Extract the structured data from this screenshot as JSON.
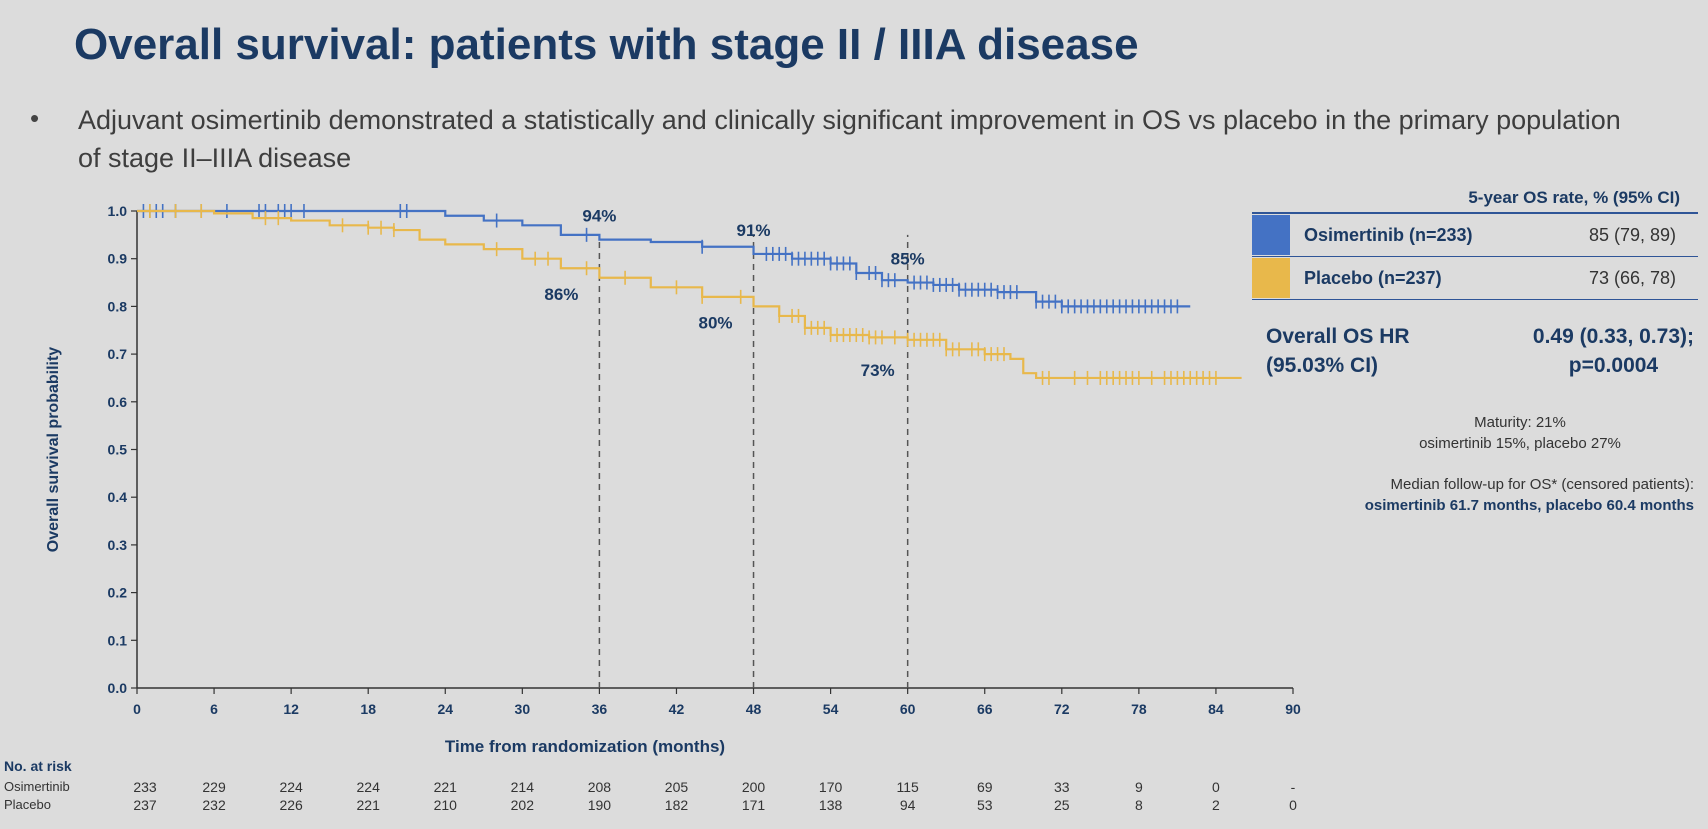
{
  "page": {
    "title": "Overall survival: patients with stage II / IIIA disease",
    "bullet_text": "Adjuvant osimertinib demonstrated a statistically and clinically significant improvement in OS vs placebo in the primary population of stage II–IIIA disease"
  },
  "chart_data": {
    "type": "line",
    "xlabel": "Time from randomization (months)",
    "ylabel": "Overall survival probability",
    "xlim": [
      0,
      90
    ],
    "ylim": [
      0,
      1.0
    ],
    "x_ticks": [
      0,
      6,
      12,
      18,
      24,
      30,
      36,
      42,
      48,
      54,
      60,
      66,
      72,
      78,
      84,
      90
    ],
    "y_ticks": [
      0.0,
      0.1,
      0.2,
      0.3,
      0.4,
      0.5,
      0.6,
      0.7,
      0.8,
      0.9,
      1.0
    ],
    "y_tick_labels": [
      "0.0",
      "0.1",
      "0.2",
      "0.3",
      "0.4",
      "0.5",
      "0.6",
      "0.7",
      "0.8",
      "0.9",
      "1.0"
    ],
    "reference_lines_x": [
      36,
      48,
      60
    ],
    "series": [
      {
        "name": "Osimertinib",
        "color": "#4472c4",
        "points": [
          [
            0,
            1.0
          ],
          [
            6,
            1.0
          ],
          [
            12,
            1.0
          ],
          [
            18,
            1.0
          ],
          [
            21,
            1.0
          ],
          [
            24,
            0.99
          ],
          [
            27,
            0.98
          ],
          [
            30,
            0.97
          ],
          [
            33,
            0.95
          ],
          [
            36,
            0.94
          ],
          [
            40,
            0.935
          ],
          [
            44,
            0.925
          ],
          [
            48,
            0.91
          ],
          [
            51,
            0.9
          ],
          [
            54,
            0.89
          ],
          [
            56,
            0.87
          ],
          [
            58,
            0.855
          ],
          [
            60,
            0.85
          ],
          [
            62,
            0.845
          ],
          [
            64,
            0.835
          ],
          [
            67,
            0.83
          ],
          [
            70,
            0.81
          ],
          [
            72,
            0.8
          ],
          [
            78,
            0.8
          ],
          [
            82,
            0.8
          ]
        ],
        "censors": [
          0.5,
          1,
          1.5,
          2,
          3,
          5,
          7,
          9.5,
          10,
          11,
          11.5,
          12,
          13,
          20.5,
          21,
          28,
          35,
          44,
          49,
          49.5,
          50,
          50.5,
          51,
          51.5,
          52,
          52.5,
          53,
          53.5,
          54,
          54.5,
          55,
          55.5,
          56,
          57,
          57.5,
          58,
          58.5,
          59,
          60.5,
          61,
          61.5,
          62,
          62.5,
          63,
          63.5,
          64,
          64.5,
          65,
          65.5,
          66,
          66.5,
          67,
          67.5,
          68,
          68.5,
          70,
          70.5,
          71,
          71.5,
          72,
          72.5,
          73,
          73.5,
          74,
          74.5,
          75,
          75.5,
          76,
          76.5,
          77,
          77.5,
          78,
          78.5,
          79,
          79.5,
          80,
          80.5,
          81
        ]
      },
      {
        "name": "Placebo",
        "color": "#e8b84b",
        "points": [
          [
            0,
            1.0
          ],
          [
            6,
            0.995
          ],
          [
            9,
            0.985
          ],
          [
            12,
            0.98
          ],
          [
            15,
            0.97
          ],
          [
            18,
            0.965
          ],
          [
            20,
            0.96
          ],
          [
            22,
            0.94
          ],
          [
            24,
            0.93
          ],
          [
            27,
            0.92
          ],
          [
            30,
            0.9
          ],
          [
            33,
            0.88
          ],
          [
            36,
            0.86
          ],
          [
            40,
            0.84
          ],
          [
            44,
            0.82
          ],
          [
            48,
            0.8
          ],
          [
            50,
            0.78
          ],
          [
            52,
            0.755
          ],
          [
            54,
            0.74
          ],
          [
            57,
            0.735
          ],
          [
            60,
            0.73
          ],
          [
            63,
            0.71
          ],
          [
            66,
            0.7
          ],
          [
            68,
            0.69
          ],
          [
            69,
            0.66
          ],
          [
            70,
            0.65
          ],
          [
            80,
            0.65
          ],
          [
            86,
            0.65
          ]
        ],
        "censors": [
          1,
          3,
          5,
          10,
          11,
          16,
          18,
          19,
          20,
          28,
          31,
          32,
          35,
          38,
          42,
          44,
          47,
          50,
          51,
          51.5,
          52,
          52.5,
          53,
          53.5,
          54,
          54.5,
          55,
          55.5,
          56,
          56.5,
          57,
          57.5,
          58,
          59,
          60,
          60.5,
          61,
          61.5,
          62,
          62.5,
          63,
          63.5,
          64,
          65,
          65.5,
          66,
          66.5,
          67,
          67.5,
          70.5,
          71,
          73,
          74,
          75,
          75.5,
          76,
          76.5,
          77,
          77.5,
          78,
          79,
          80,
          80.5,
          81,
          81.5,
          82,
          82.5,
          83,
          83.5,
          84
        ]
      }
    ],
    "annotations": [
      {
        "text": "94%",
        "x": 36,
        "y": 0.94
      },
      {
        "text": "91%",
        "x": 48,
        "y": 0.91
      },
      {
        "text": "85%",
        "x": 60,
        "y": 0.85
      },
      {
        "text": "86%",
        "x": 36,
        "y": 0.86
      },
      {
        "text": "80%",
        "x": 48,
        "y": 0.8
      },
      {
        "text": "73%",
        "x": 60,
        "y": 0.73
      }
    ],
    "risk_table": {
      "title": "No. at risk",
      "months": [
        0,
        6,
        12,
        18,
        24,
        30,
        36,
        42,
        48,
        54,
        60,
        66,
        72,
        78,
        84,
        90
      ],
      "rows": [
        {
          "label": "Osimertinib",
          "values": [
            "233",
            "229",
            "224",
            "224",
            "221",
            "214",
            "208",
            "205",
            "200",
            "170",
            "115",
            "69",
            "33",
            "9",
            "0",
            "-"
          ]
        },
        {
          "label": "Placebo",
          "values": [
            "237",
            "232",
            "226",
            "221",
            "210",
            "202",
            "190",
            "182",
            "171",
            "138",
            "94",
            "53",
            "25",
            "8",
            "2",
            "0"
          ]
        }
      ]
    }
  },
  "legend": {
    "header": "5-year OS rate, % (95% CI)",
    "rows": [
      {
        "name": "Osimertinib (n=233)",
        "value": "85 (79, 89)",
        "color": "#4472c4"
      },
      {
        "name": "Placebo (n=237)",
        "value": "73 (66, 78)",
        "color": "#e8b84b"
      }
    ]
  },
  "hr": {
    "label_line1": "Overall OS HR",
    "label_line2": "(95.03% CI)",
    "value_line1": "0.49 (0.33, 0.73);",
    "value_line2": "p=0.0004"
  },
  "maturity": {
    "line1": "Maturity: 21%",
    "line2": "osimertinib 15%, placebo 27%"
  },
  "followup": {
    "line1": "Median follow-up for OS* (censored patients):",
    "line2": "osimertinib 61.7 months, placebo 60.4 months"
  }
}
